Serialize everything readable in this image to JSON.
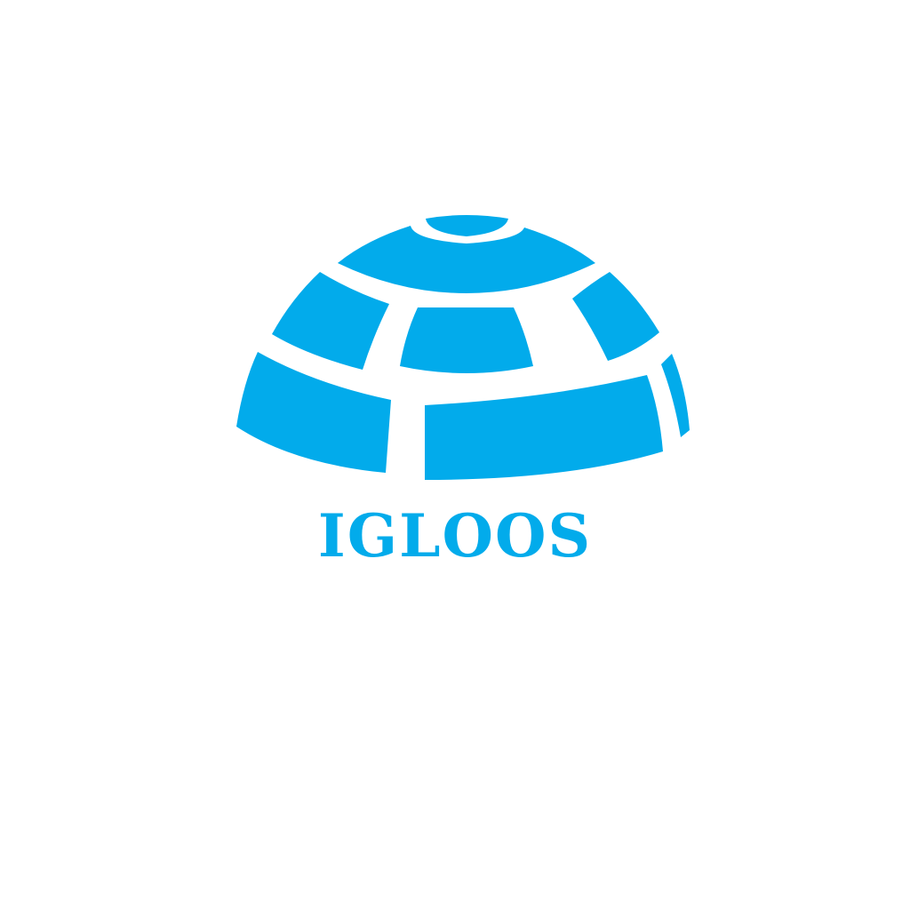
{
  "brand": {
    "name": "IGLOOS",
    "accent_color": "#02abeb",
    "background_color": "#ffffff"
  },
  "logo": {
    "icon": "igloo-icon"
  }
}
